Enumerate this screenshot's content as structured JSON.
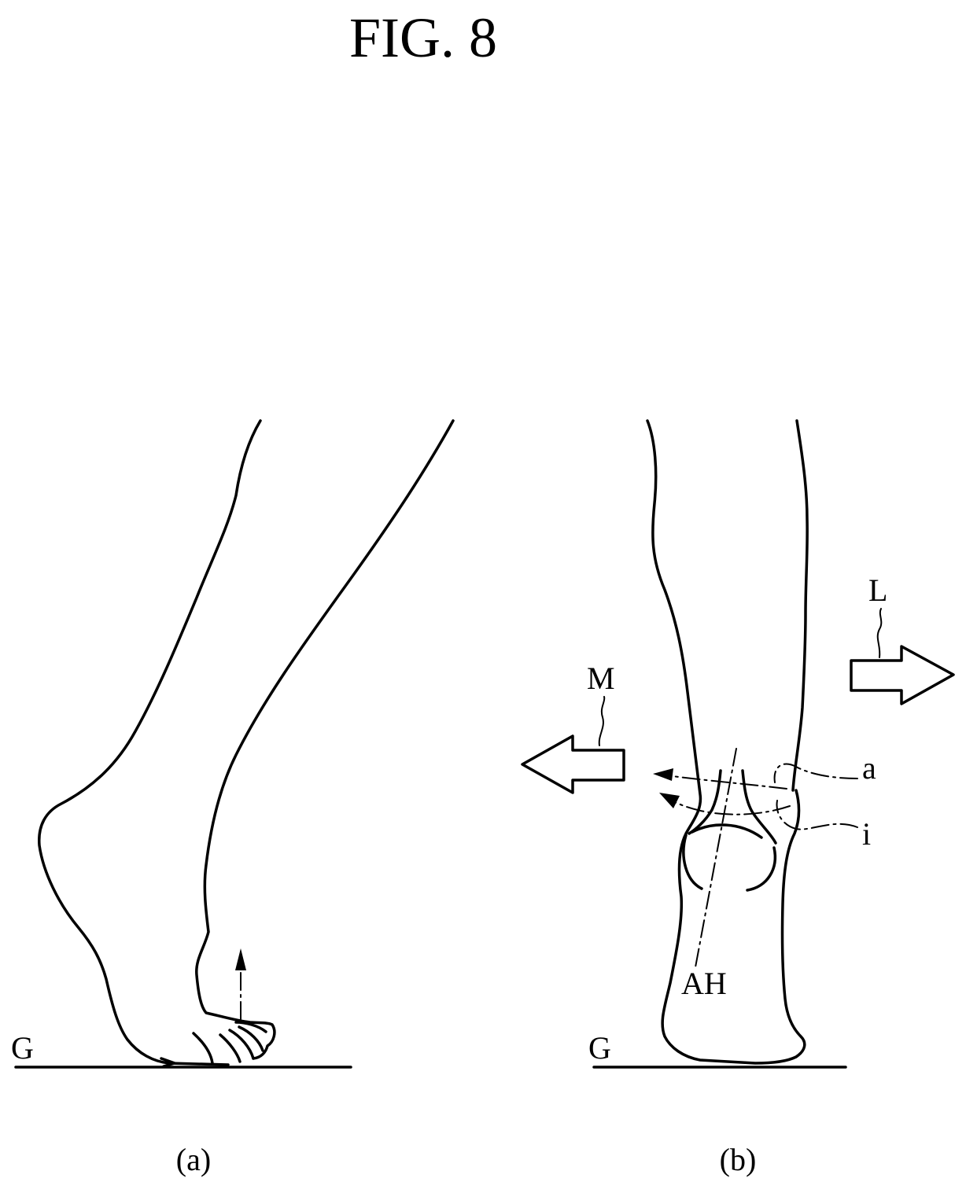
{
  "figure": {
    "title": "FIG. 8"
  },
  "panel_a": {
    "caption": "(a)",
    "ground_label": "G"
  },
  "panel_b": {
    "caption": "(b)",
    "ground_label": "G",
    "medial_arrow_label": "M",
    "lateral_arrow_label": "L",
    "label_a": "a",
    "label_i": "i",
    "axis_label": "AH"
  }
}
